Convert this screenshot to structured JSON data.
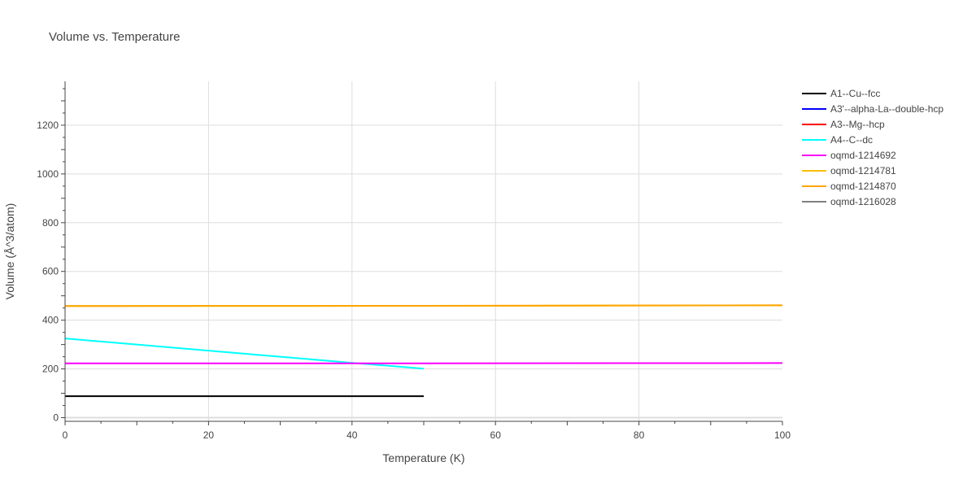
{
  "chart_data": {
    "type": "line",
    "title": "Volume vs. Temperature",
    "xlabel": "Temperature (K)",
    "ylabel": "Volume (Å^3/atom)",
    "xlim": [
      0,
      100
    ],
    "ylim": [
      -15,
      1380
    ],
    "xticks": [
      0,
      20,
      40,
      60,
      80,
      100
    ],
    "yticks": [
      0,
      200,
      400,
      600,
      800,
      1000,
      1200
    ],
    "grid": true,
    "legend_position": "right",
    "series": [
      {
        "name": "A1--Cu--fcc",
        "color": "#000000",
        "x": [
          0,
          50
        ],
        "y": [
          88,
          88
        ]
      },
      {
        "name": "A3'--alpha-La--double-hcp",
        "color": "#0000ff",
        "x": [],
        "y": []
      },
      {
        "name": "A3--Mg--hcp",
        "color": "#ff0000",
        "x": [],
        "y": []
      },
      {
        "name": "A4--C--dc",
        "color": "#00ffff",
        "x": [
          0,
          10,
          20,
          30,
          40,
          50
        ],
        "y": [
          325,
          300,
          275,
          250,
          225,
          201
        ]
      },
      {
        "name": "oqmd-1214692",
        "color": "#ff00ff",
        "x": [
          0,
          50,
          100
        ],
        "y": [
          223,
          223,
          224
        ]
      },
      {
        "name": "oqmd-1214781",
        "color": "#ffbf00",
        "x": [
          0,
          50,
          100
        ],
        "y": [
          458,
          459,
          461
        ]
      },
      {
        "name": "oqmd-1214870",
        "color": "#ffa500",
        "x": [
          0,
          50,
          100
        ],
        "y": [
          458,
          459,
          461
        ]
      },
      {
        "name": "oqmd-1216028",
        "color": "#808080",
        "x": [],
        "y": []
      }
    ]
  }
}
